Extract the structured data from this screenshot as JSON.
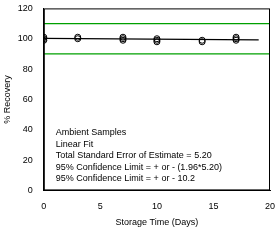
{
  "chart_data": {
    "type": "scatter",
    "xlabel": "Storage Time (Days)",
    "ylabel": "% Recovery",
    "xlim": [
      0,
      20
    ],
    "ylim": [
      0,
      120
    ],
    "xticks": [
      0,
      5,
      10,
      15,
      20
    ],
    "yticks": [
      0,
      20,
      40,
      60,
      80,
      100,
      120
    ],
    "grid": false,
    "annotations": [
      "Ambient Samples",
      "Linear Fit",
      "Total Standard Error of Estimate = 5.20",
      "95% Confidence Limit = + or - (1.96*5.20)",
      "95% Confidence Limit = + or - 10.2"
    ],
    "series": [
      {
        "type": "scatter",
        "marker": "circle",
        "color": "#000000",
        "x": [
          0,
          0,
          0,
          3,
          3,
          7,
          7,
          7,
          10,
          10,
          10,
          14,
          14,
          17,
          17,
          17
        ],
        "values": [
          99,
          100,
          101,
          100,
          101,
          99,
          100,
          101,
          98,
          99,
          100,
          98,
          99,
          99,
          100,
          101
        ]
      },
      {
        "type": "line",
        "line_style": "solid",
        "color": "#000000",
        "x": [
          0,
          19
        ],
        "values": [
          100.2,
          99.2
        ]
      },
      {
        "type": "line",
        "line_style": "solid",
        "color": "#00a000",
        "x": [
          0,
          20
        ],
        "values": [
          110,
          110
        ]
      },
      {
        "type": "line",
        "line_style": "solid",
        "color": "#00a000",
        "x": [
          0,
          20
        ],
        "values": [
          90,
          90
        ]
      }
    ]
  }
}
